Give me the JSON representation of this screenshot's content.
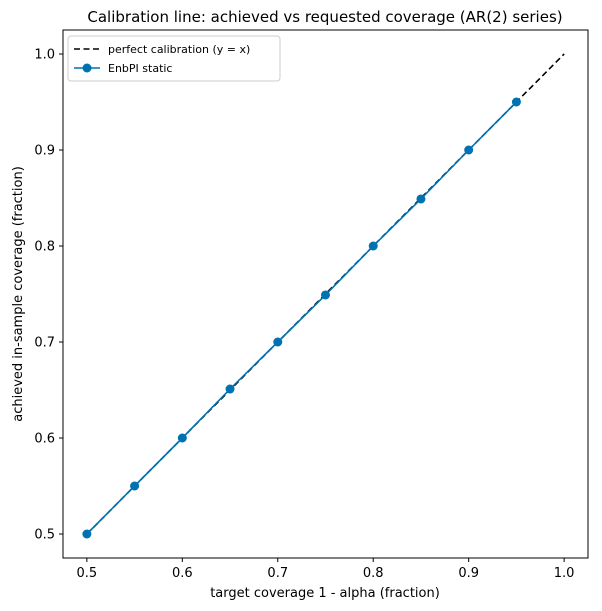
{
  "chart_data": {
    "type": "line",
    "title": "Calibration line: achieved vs requested coverage (AR(2) series)",
    "xlabel": "target coverage 1 - alpha (fraction)",
    "ylabel": "achieved in-sample coverage (fraction)",
    "xlim": [
      0.475,
      1.025
    ],
    "ylim": [
      0.475,
      1.025
    ],
    "xticks": [
      0.5,
      0.6,
      0.7,
      0.8,
      0.9,
      1.0
    ],
    "yticks": [
      0.5,
      0.6,
      0.7,
      0.8,
      0.9,
      1.0
    ],
    "xtick_labels": [
      "0.5",
      "0.6",
      "0.7",
      "0.8",
      "0.9",
      "1.0"
    ],
    "ytick_labels": [
      "0.5",
      "0.6",
      "0.7",
      "0.8",
      "0.9",
      "1.0"
    ],
    "grid": false,
    "legend": "top-left",
    "series": [
      {
        "name": "perfect calibration (y = x)",
        "style": "dashed",
        "color": "#000000",
        "x": [
          0.5,
          1.0
        ],
        "y": [
          0.5,
          1.0
        ]
      },
      {
        "name": "EnbPI static",
        "style": "line-marker",
        "color": "#0072b2",
        "x": [
          0.5,
          0.55,
          0.6,
          0.65,
          0.7,
          0.75,
          0.8,
          0.85,
          0.9,
          0.95
        ],
        "y": [
          0.5,
          0.55,
          0.6,
          0.651,
          0.7,
          0.749,
          0.8,
          0.849,
          0.9,
          0.95
        ]
      }
    ]
  }
}
